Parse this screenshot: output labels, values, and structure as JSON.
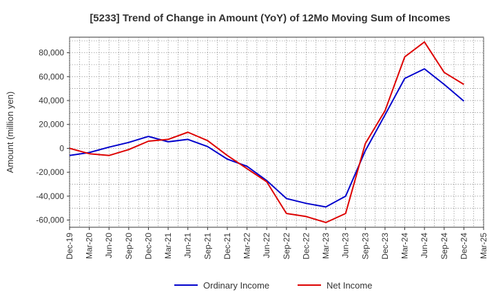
{
  "chart_data": {
    "type": "line",
    "title": "[5233]  Trend of Change in Amount (YoY) of 12Mo Moving Sum of Incomes",
    "xlabel": "",
    "ylabel": "Amount (million yen)",
    "x": [
      "Dec-19",
      "Mar-20",
      "Jun-20",
      "Sep-20",
      "Dec-20",
      "Mar-21",
      "Jun-21",
      "Sep-21",
      "Dec-21",
      "Mar-22",
      "Jun-22",
      "Sep-22",
      "Dec-22",
      "Mar-23",
      "Jun-23",
      "Sep-23",
      "Dec-23",
      "Mar-24",
      "Jun-24",
      "Sep-24",
      "Dec-24"
    ],
    "x_ticks": [
      "Dec-19",
      "Mar-20",
      "Jun-20",
      "Sep-20",
      "Dec-20",
      "Mar-21",
      "Jun-21",
      "Sep-21",
      "Dec-21",
      "Mar-22",
      "Jun-22",
      "Sep-22",
      "Dec-22",
      "Mar-23",
      "Jun-23",
      "Sep-23",
      "Dec-23",
      "Mar-24",
      "Jun-24",
      "Sep-24",
      "Dec-24",
      "Mar-25"
    ],
    "y_ticks": [
      80000,
      60000,
      40000,
      20000,
      0,
      -20000,
      -40000,
      -60000
    ],
    "y_tick_labels": [
      "80,000",
      "60,000",
      "40,000",
      "20,000",
      "0",
      "-20,000",
      "-40,000",
      "-60,000"
    ],
    "ylim": [
      -66000,
      93000
    ],
    "grid": true,
    "legend_position": "bottom",
    "series": [
      {
        "name": "Ordinary Income",
        "color": "#0000cc",
        "values": [
          -6000,
          -3500,
          1000,
          5000,
          10000,
          5500,
          7500,
          1500,
          -9000,
          -15000,
          -27000,
          -42000,
          -46000,
          -49000,
          -40000,
          -2000,
          28000,
          58500,
          66500,
          53500,
          39500
        ]
      },
      {
        "name": "Net Income",
        "color": "#dd0000",
        "values": [
          0,
          -4500,
          -6000,
          -1000,
          6000,
          7500,
          13500,
          6500,
          -6000,
          -17000,
          -28000,
          -54500,
          -57000,
          -62000,
          -54500,
          4000,
          31500,
          76500,
          89000,
          63500,
          53500
        ]
      }
    ]
  }
}
